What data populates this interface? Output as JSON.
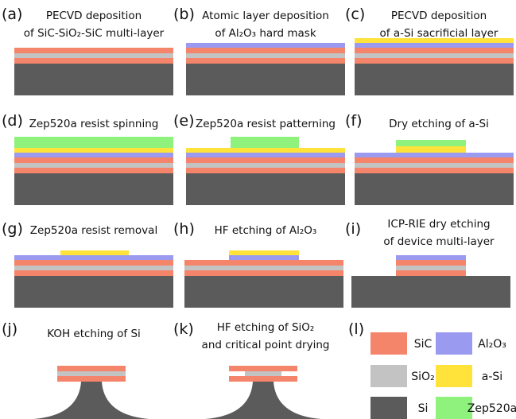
{
  "panels": [
    {
      "label": "(a)",
      "caption": [
        "PECVD deposition",
        "of SiC-SiO₂-SiC multi-layer"
      ]
    },
    {
      "label": "(b)",
      "caption": [
        "Atomic layer deposition",
        "of Al₂O₃ hard mask"
      ]
    },
    {
      "label": "(c)",
      "caption": [
        "PECVD deposition",
        "of a-Si sacrificial layer"
      ]
    },
    {
      "label": "(d)",
      "caption": [
        "Zep520a resist spinning"
      ]
    },
    {
      "label": "(e)",
      "caption": [
        "Zep520a resist patterning"
      ]
    },
    {
      "label": "(f)",
      "caption": [
        "Dry etching of a-Si"
      ]
    },
    {
      "label": "(g)",
      "caption": [
        "Zep520a resist removal"
      ]
    },
    {
      "label": "(h)",
      "caption": [
        "HF etching of Al₂O₃"
      ]
    },
    {
      "label": "(i)",
      "caption": [
        "ICP-RIE dry etching",
        "of device multi-layer"
      ]
    },
    {
      "label": "(j)",
      "caption": [
        "KOH etching of Si"
      ]
    },
    {
      "label": "(k)",
      "caption": [
        "HF etching of SiO₂",
        "and critical point drying"
      ]
    }
  ],
  "legend": {
    "label": "(l)",
    "items": [
      "SiC",
      "Al₂O₃",
      "SiO₂",
      "a-Si",
      "Si",
      "Zep520a"
    ]
  }
}
